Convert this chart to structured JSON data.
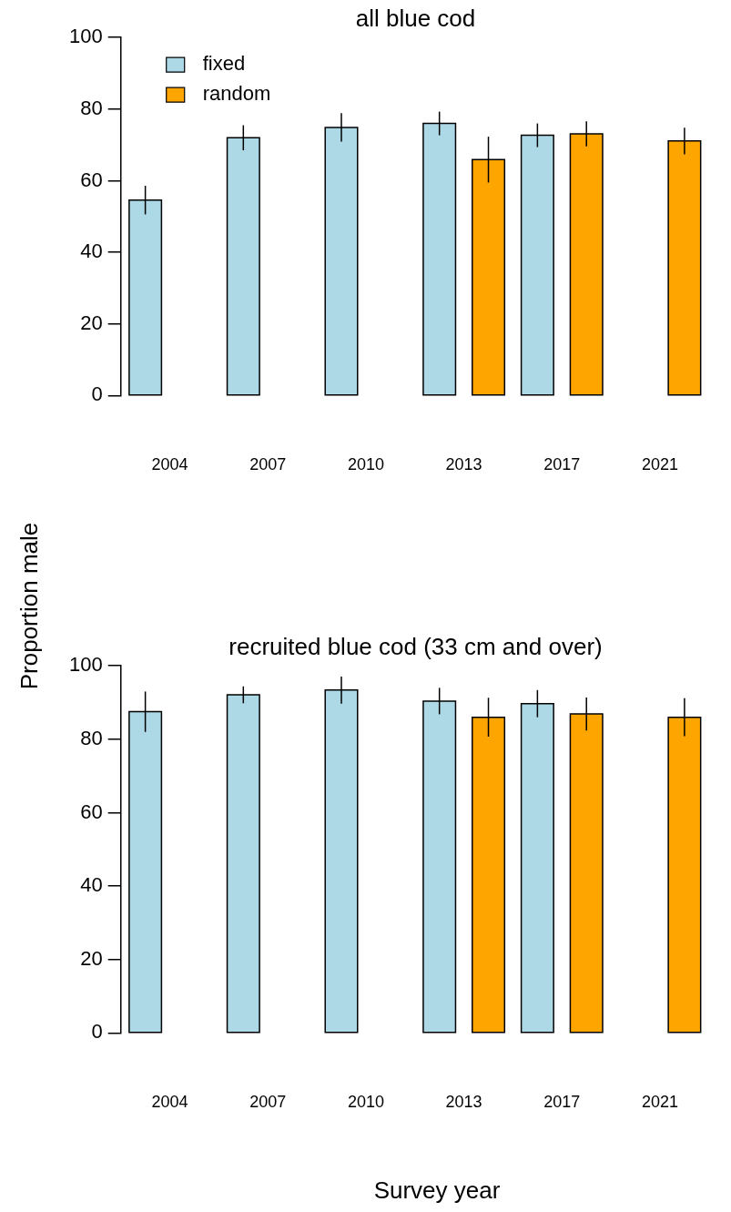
{
  "chart_data": [
    {
      "type": "bar",
      "title": "all blue cod",
      "ylabel": "Proportion male",
      "categories": [
        "2004",
        "2007",
        "2010",
        "2013",
        "2017",
        "2021"
      ],
      "ylim": [
        0,
        100
      ],
      "yticks": [
        0,
        20,
        40,
        60,
        80,
        100
      ],
      "grid": false,
      "legend": "top left",
      "series": [
        {
          "name": "fixed",
          "color": "#add8e6",
          "values": [
            54.6,
            72.0,
            74.9,
            76.0,
            72.7,
            null
          ],
          "errors": [
            4,
            3.5,
            4,
            3.3,
            3.3,
            null
          ]
        },
        {
          "name": "random",
          "color": "#ffa500",
          "values": [
            null,
            null,
            null,
            65.9,
            73.1,
            71.1
          ],
          "errors": [
            null,
            null,
            null,
            6.4,
            3.5,
            3.7
          ]
        }
      ]
    },
    {
      "type": "bar",
      "title": "recruited blue cod (33 cm and over)",
      "xlabel": "Survey year",
      "categories": [
        "2004",
        "2007",
        "2010",
        "2013",
        "2017",
        "2021"
      ],
      "ylim": [
        0,
        100
      ],
      "yticks": [
        0,
        20,
        40,
        60,
        80,
        100
      ],
      "grid": false,
      "legend": false,
      "series": [
        {
          "color": "#add8e6",
          "values": [
            87.5,
            92.1,
            93.4,
            90.4,
            89.7,
            null
          ],
          "errors": [
            5.5,
            2.3,
            3.7,
            3.6,
            3.7,
            null
          ]
        },
        {
          "color": "#ffa500",
          "values": [
            null,
            null,
            null,
            86.0,
            86.9,
            86.0
          ],
          "errors": [
            null,
            null,
            null,
            5.3,
            4.5,
            5.2
          ]
        }
      ]
    }
  ]
}
